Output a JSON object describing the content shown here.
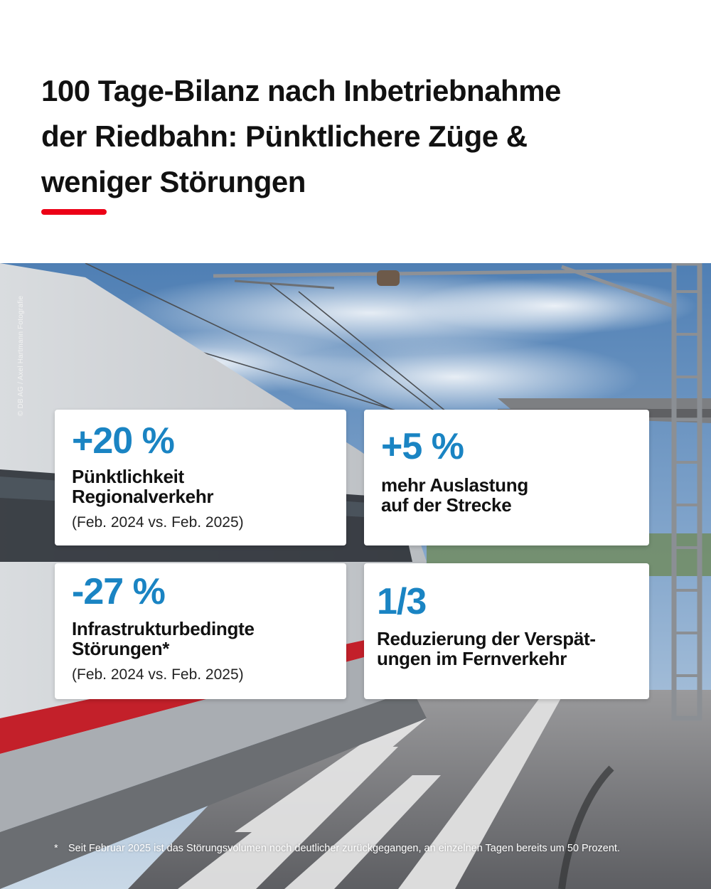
{
  "headline": {
    "line1": "100 Tage-Bilanz nach Inbetriebnahme",
    "line2": "der Riedbahn: Pünktlichere Züge &",
    "line3": "weniger Störungen"
  },
  "colors": {
    "accent_red": "#ec0016",
    "value_blue": "#1a84c3",
    "text_dark": "#111111",
    "card_bg": "#ffffff"
  },
  "photo_credit": "© DB AG / Axel Hartmann Fotografie",
  "cards": [
    {
      "value": "+20 %",
      "label_line1": "Pünktlichkeit",
      "label_line2": "Regionalverkehr",
      "note": "(Feb. 2024 vs. Feb. 2025)"
    },
    {
      "value": "+5 %",
      "label_line1": "mehr Auslastung",
      "label_line2": "auf der Strecke",
      "note": ""
    },
    {
      "value": "-27 %",
      "label_line1": "Infrastrukturbedingte",
      "label_line2": "Störungen*",
      "note": "(Feb. 2024 vs. Feb. 2025)"
    },
    {
      "value": "1/3",
      "label_line1": "Reduzierung der Verspät-",
      "label_line2": "ungen im Fernverkehr",
      "note": ""
    }
  ],
  "footnote": {
    "marker": "*",
    "text": "Seit Februar 2025 ist das Störungsvolumen noch deutlicher zurückgegangen, an einzelnen Tagen bereits um 50 Prozent."
  }
}
